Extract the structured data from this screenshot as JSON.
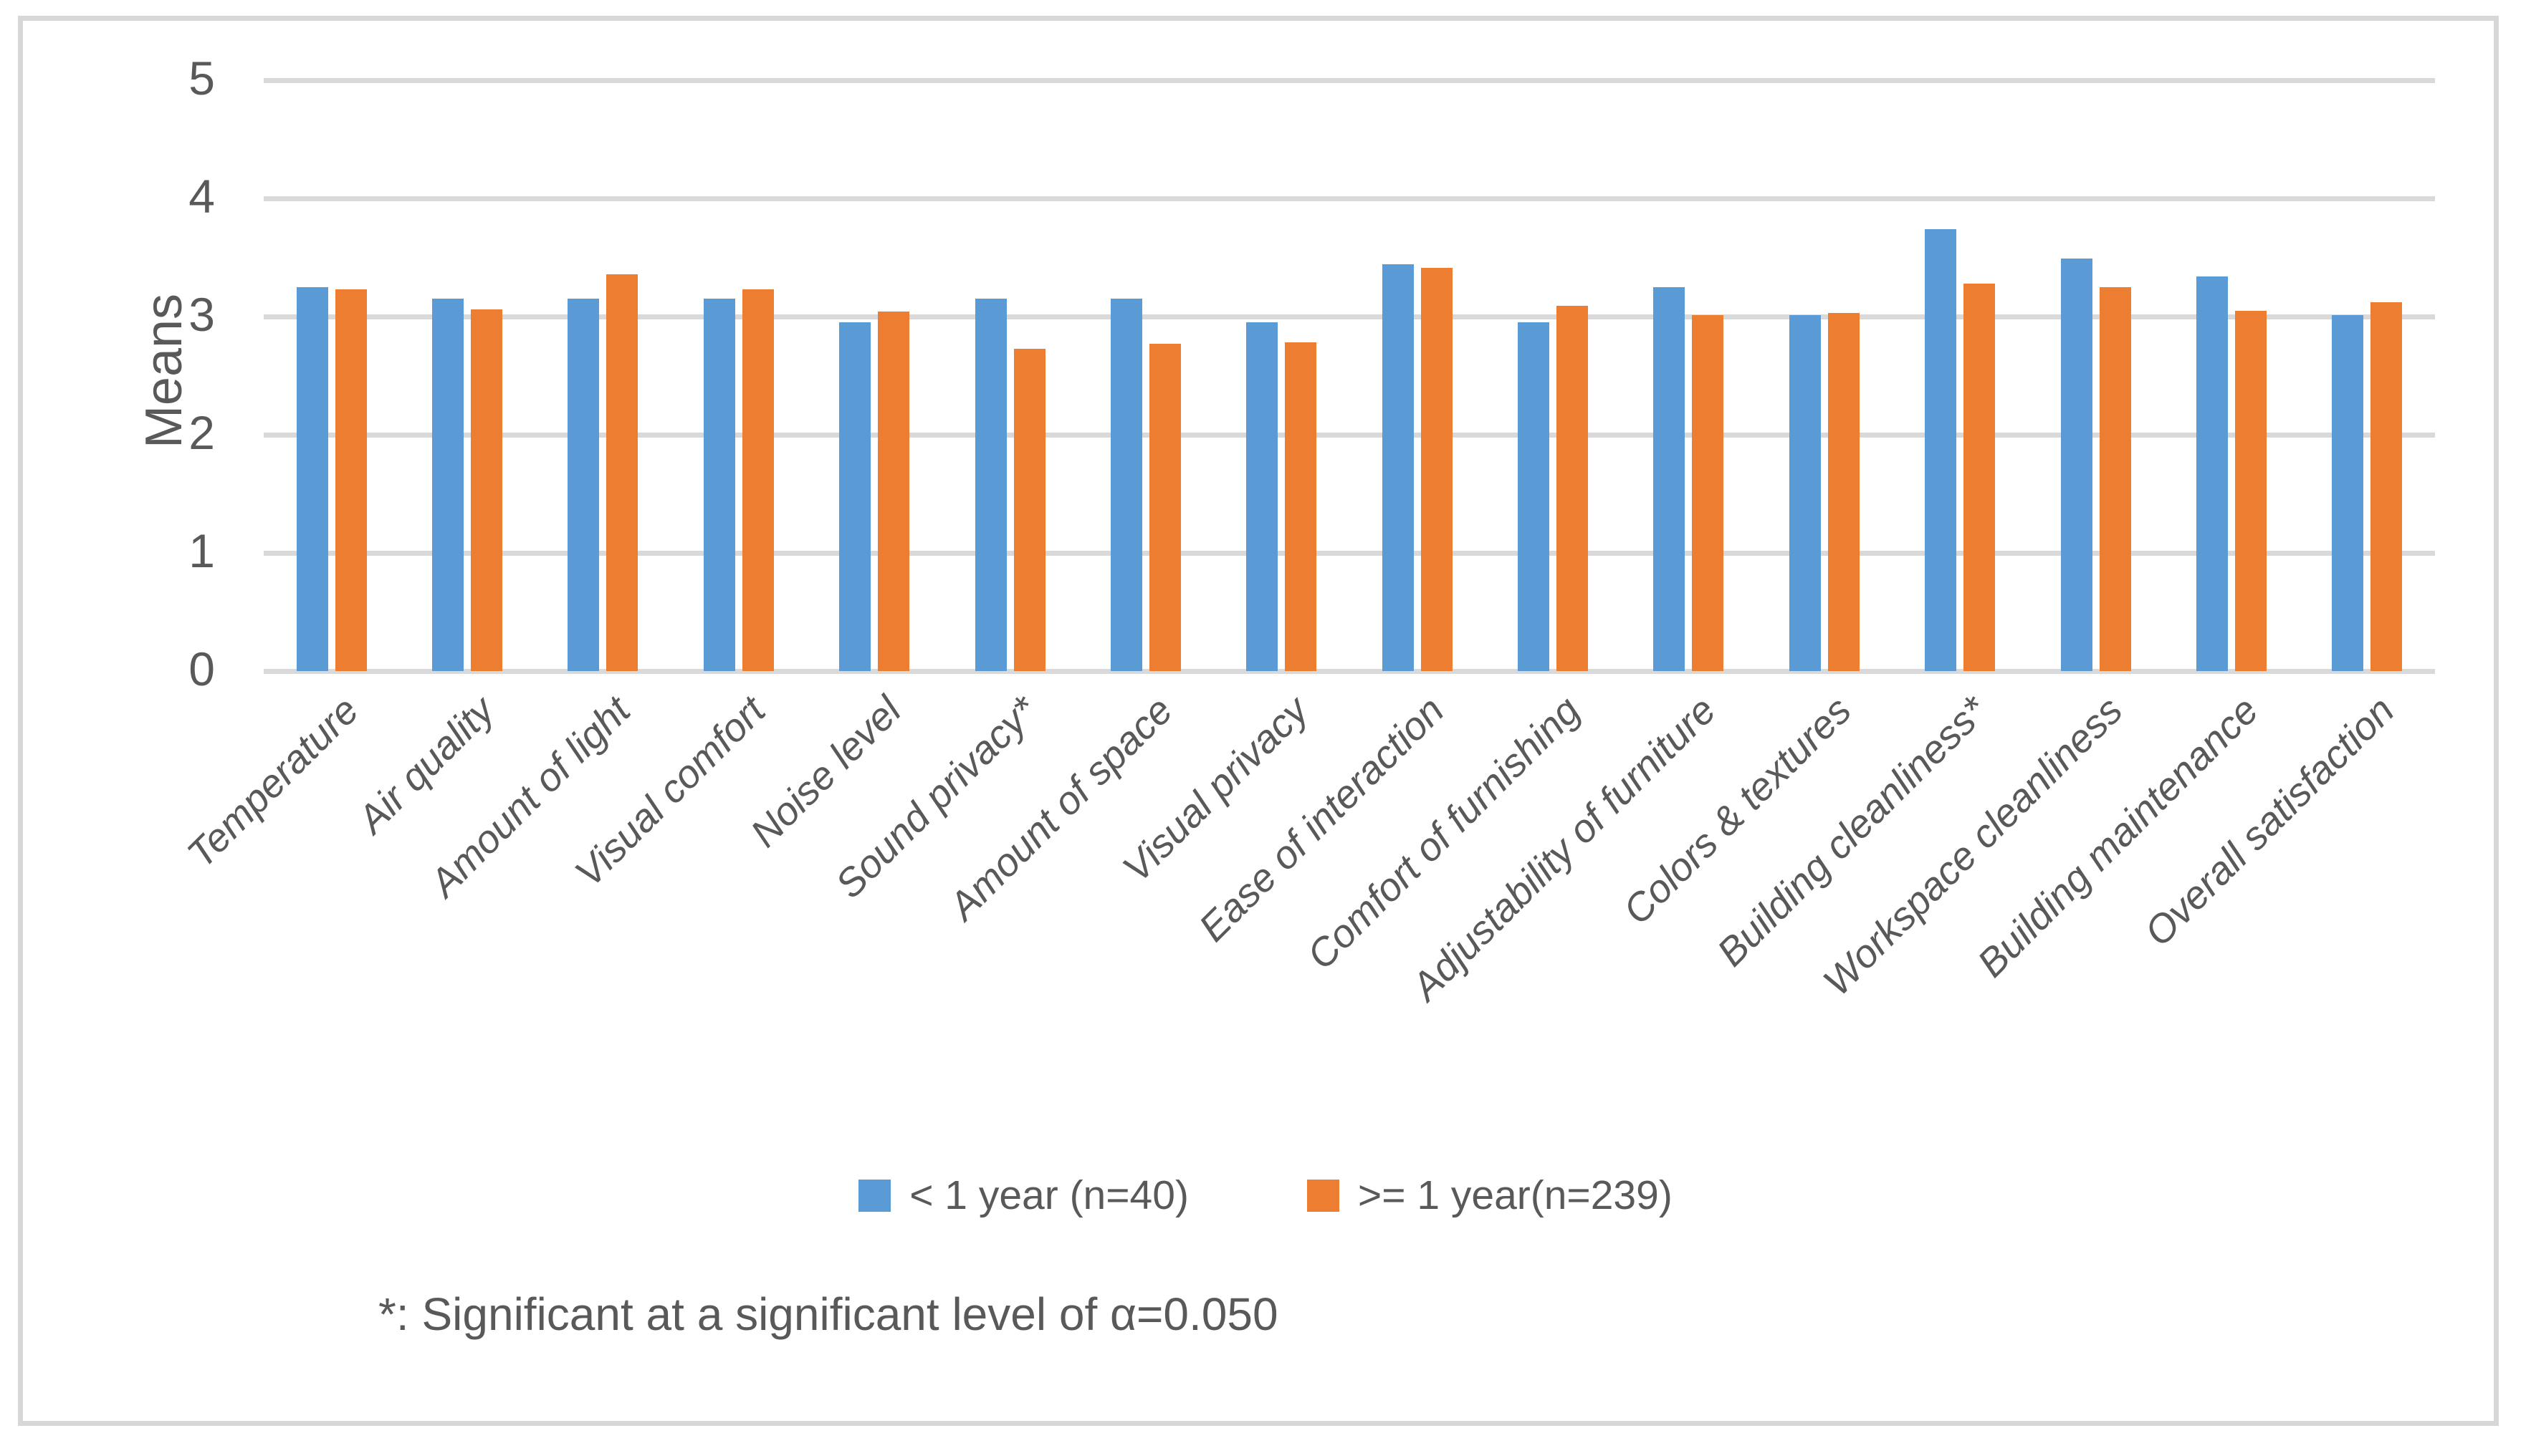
{
  "figure": {
    "background_color": "#ffffff",
    "frame_border_color": "#d7d7d7",
    "gridline_color": "#d9d9d9",
    "text_color": "#595959"
  },
  "chart_data": {
    "type": "bar",
    "title": "",
    "xlabel": "",
    "ylabel": "Means",
    "ylim": [
      0,
      5
    ],
    "yticks": [
      0,
      1,
      2,
      3,
      4,
      5
    ],
    "grid": true,
    "legend_position": "bottom-center",
    "categories": [
      "Temperature",
      "Air quality",
      "Amount of light",
      "Visual comfort",
      "Noise level",
      "Sound privacy*",
      "Amount of space",
      "Visual privacy",
      "Ease of interaction",
      "Comfort of furnishing",
      "Adjustability of furniture",
      "Colors & textures",
      "Building cleanliness*",
      "Workspace cleanliness",
      "Building maintenance",
      "Overall satisfaction"
    ],
    "series": [
      {
        "name": "< 1 year (n=40)",
        "color": "#5B9BD5",
        "values": [
          3.25,
          3.15,
          3.15,
          3.15,
          2.95,
          3.15,
          3.15,
          2.95,
          3.44,
          2.95,
          3.25,
          3.01,
          3.74,
          3.49,
          3.34,
          3.01
        ]
      },
      {
        "name": ">= 1 year(n=239)",
        "color": "#ED7D31",
        "values": [
          3.23,
          3.06,
          3.36,
          3.23,
          3.04,
          2.73,
          2.77,
          2.78,
          3.41,
          3.09,
          3.01,
          3.03,
          3.28,
          3.25,
          3.05,
          3.12
        ]
      }
    ],
    "footnote": "*: Significant at a significant level of α=0.050"
  }
}
